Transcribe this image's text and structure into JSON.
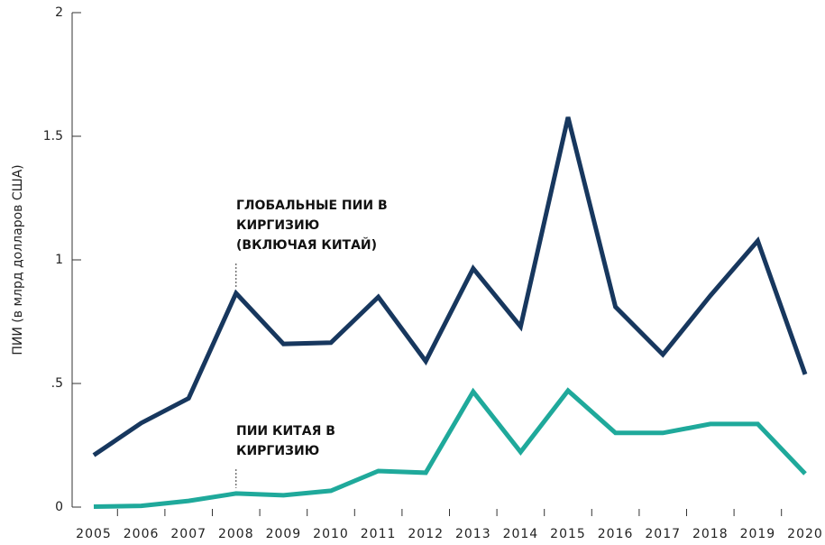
{
  "chart_data": {
    "type": "line",
    "y_label": "ПИИ (в млрд долларов США)",
    "categories": [
      "2005",
      "2006",
      "2007",
      "2008",
      "2009",
      "2010",
      "2011",
      "2012",
      "2013",
      "2014",
      "2015",
      "2016",
      "2017",
      "2018",
      "2019",
      "2020"
    ],
    "series": [
      {
        "name": [
          "ГЛОБАЛЬНЫЕ ПИИ В",
          "КИРГИЗИЮ",
          "(ВКЛЮЧАЯ КИТАЙ)"
        ],
        "color": "#17375e",
        "values": [
          0.21,
          0.34,
          0.44,
          0.865,
          0.66,
          0.665,
          0.85,
          0.59,
          0.965,
          0.73,
          1.577,
          0.81,
          0.617,
          0.855,
          1.077,
          0.537
        ]
      },
      {
        "name": [
          "ПИИ КИТАЯ В",
          "КИРГИЗИЮ"
        ],
        "color": "#1fa99b",
        "values": [
          0.002,
          0.005,
          0.025,
          0.055,
          0.048,
          0.066,
          0.146,
          0.139,
          0.467,
          0.223,
          0.471,
          0.3,
          0.3,
          0.336,
          0.336,
          0.135
        ]
      }
    ],
    "ylim": [
      0,
      2
    ],
    "yticks": [
      0,
      {
        "value": 0.5,
        "label": ".5"
      },
      1,
      1.5,
      2
    ]
  }
}
